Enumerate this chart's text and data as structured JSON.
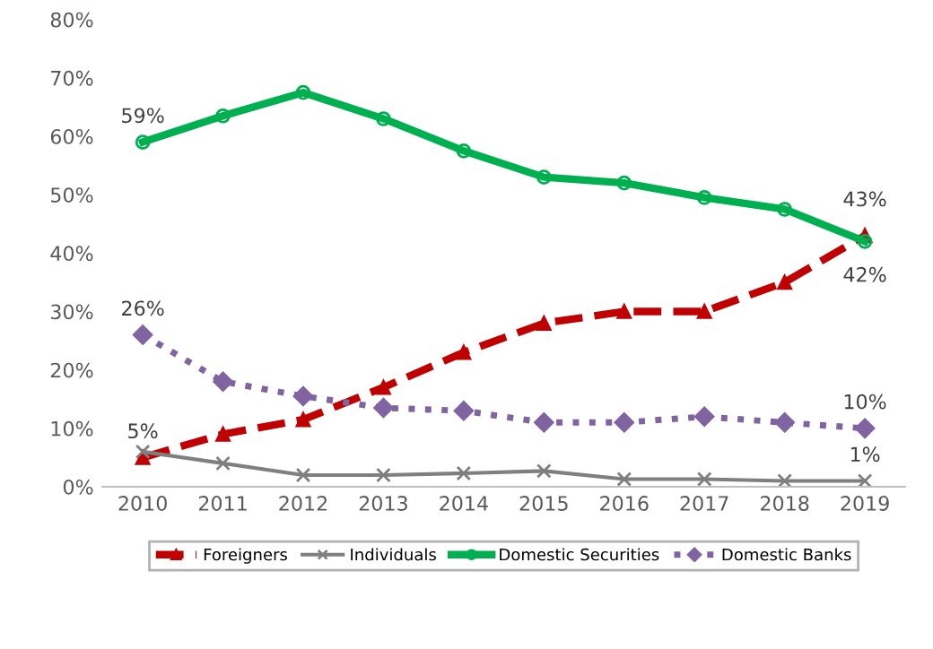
{
  "chart_data": {
    "type": "line",
    "categories": [
      "2010",
      "2011",
      "2012",
      "2013",
      "2014",
      "2015",
      "2016",
      "2017",
      "2018",
      "2019"
    ],
    "ylim": [
      0,
      80
    ],
    "yticks": [
      {
        "value": 0,
        "label": "0%"
      },
      {
        "value": 10,
        "label": "10%"
      },
      {
        "value": 20,
        "label": "20%"
      },
      {
        "value": 30,
        "label": "30%"
      },
      {
        "value": 40,
        "label": "40%"
      },
      {
        "value": 50,
        "label": "50%"
      },
      {
        "value": 60,
        "label": "60%"
      },
      {
        "value": 70,
        "label": "70%"
      },
      {
        "value": 80,
        "label": "80%"
      }
    ],
    "grid": false,
    "legend": "bottom",
    "series": [
      {
        "name": "Foreigners",
        "color": "#c00000",
        "marker": "triangle",
        "line_style": "dashed",
        "values": [
          5,
          9,
          11.5,
          17,
          23,
          28,
          30,
          30,
          35,
          43
        ],
        "value_labels": [
          "5%",
          null,
          null,
          null,
          null,
          null,
          null,
          null,
          null,
          "43%"
        ]
      },
      {
        "name": "Individuals",
        "color": "#7f7f7f",
        "marker": "cross",
        "line_style": "solid",
        "values": [
          6,
          4,
          2,
          2,
          2.3,
          2.7,
          1.3,
          1.3,
          1,
          1
        ],
        "value_labels": [
          null,
          null,
          null,
          null,
          null,
          null,
          null,
          null,
          null,
          "1%"
        ]
      },
      {
        "name": "Domestic Securities",
        "color": "#00b050",
        "marker": "circle",
        "line_style": "solid",
        "values": [
          59,
          63.5,
          67.5,
          63,
          57.5,
          53,
          52,
          49.5,
          47.5,
          42
        ],
        "value_labels": [
          "59%",
          null,
          null,
          null,
          null,
          null,
          null,
          null,
          null,
          "42%"
        ]
      },
      {
        "name": "Domestic Banks",
        "color": "#8064a2",
        "marker": "diamond",
        "line_style": "dotted",
        "values": [
          26,
          18,
          15.5,
          13.5,
          13,
          11,
          11,
          12,
          11,
          10
        ],
        "value_labels": [
          "26%",
          null,
          null,
          null,
          null,
          null,
          null,
          null,
          null,
          "10%"
        ]
      }
    ]
  }
}
